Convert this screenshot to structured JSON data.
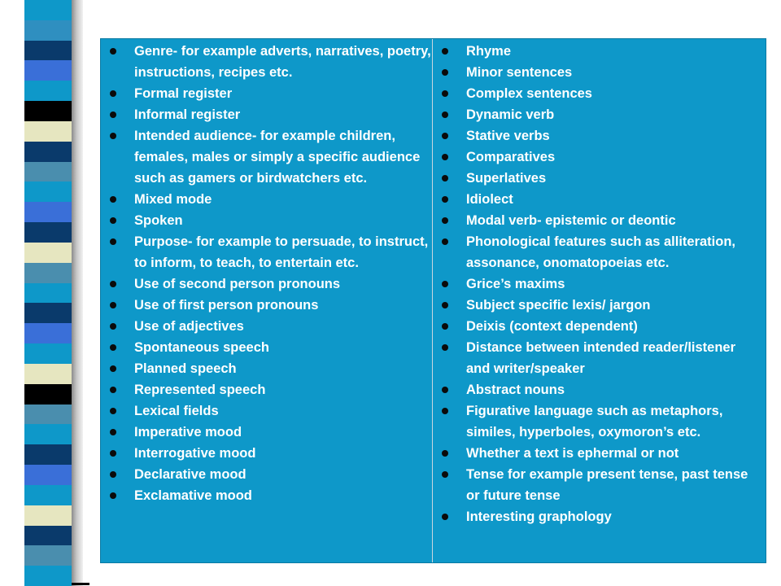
{
  "colors": {
    "panel": "#0e98c9",
    "text": "#ffffff",
    "bullet": "#0b0b0b",
    "stripe_palette": [
      "#0a3a6b",
      "#0e98c9",
      "#3a6fd8",
      "#000000",
      "#e6e6c0",
      "#4a8eae"
    ]
  },
  "decoration": {
    "stripe_colors": [
      "#0e98c9",
      "#2f8fc0",
      "#0a3a6b",
      "#3a6fd8",
      "#0e98c9",
      "#000000",
      "#e6e6c0",
      "#0a3a6b",
      "#4a8eae",
      "#0e98c9",
      "#3a6fd8",
      "#0a3a6b",
      "#e6e6c0",
      "#4a8eae",
      "#0e98c9",
      "#0a3a6b",
      "#3a6fd8",
      "#0e98c9",
      "#e6e6c0",
      "#000000",
      "#4a8eae",
      "#0e98c9",
      "#0a3a6b",
      "#3a6fd8",
      "#0e98c9",
      "#e6e6c0",
      "#0a3a6b",
      "#4a8eae",
      "#0e98c9"
    ]
  },
  "table": {
    "left_items": [
      "Genre- for example adverts, narratives, poetry, instructions, recipes etc.",
      "Formal register",
      "Informal register",
      "Intended audience- for example children, females, males or simply a specific audience such as gamers or birdwatchers etc.",
      "Mixed mode",
      "Spoken",
      "Purpose- for example to persuade, to instruct, to inform, to teach, to entertain etc.",
      "Use of second person pronouns",
      "Use of first person pronouns",
      "Use of adjectives",
      "Spontaneous speech",
      "Planned speech",
      "Represented speech",
      "Lexical fields",
      "Imperative mood",
      "Interrogative mood",
      "Declarative mood",
      "Exclamative mood"
    ],
    "right_items": [
      "Rhyme",
      "Minor sentences",
      "Complex sentences",
      "Dynamic verb",
      "Stative verbs",
      "Comparatives",
      "Superlatives",
      "Idiolect",
      "Modal verb- epistemic or deontic",
      "Phonological features such as alliteration, assonance, onomatopoeias etc.",
      "Grice’s maxims",
      "Subject specific lexis/ jargon",
      "Deixis (context dependent)",
      "Distance between intended reader/listener and writer/speaker",
      "Abstract nouns",
      "Figurative language such as metaphors, similes, hyperboles, oxymoron’s etc.",
      "Whether a text is ephermal or not",
      "Tense for example present tense, past tense or future tense",
      "Interesting graphology"
    ]
  }
}
